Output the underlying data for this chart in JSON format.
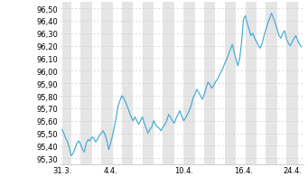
{
  "title": "",
  "ylabel": "",
  "xlabel": "",
  "ylim": [
    95.25,
    96.55
  ],
  "yticks": [
    95.3,
    95.4,
    95.5,
    95.6,
    95.7,
    95.8,
    95.9,
    96.0,
    96.1,
    96.2,
    96.3,
    96.4,
    96.5
  ],
  "xtick_labels": [
    "31.3.",
    "4.4.",
    "10.4.",
    "16.4.",
    "24.4."
  ],
  "line_color": "#42aad4",
  "bg_color": "#ffffff",
  "plot_bg": "#ffffff",
  "grid_color": "#cccccc",
  "stripe_color": "#e5e5e5",
  "prices": [
    95.53,
    95.5,
    95.46,
    95.43,
    95.38,
    95.32,
    95.34,
    95.38,
    95.42,
    95.44,
    95.41,
    95.37,
    95.35,
    95.42,
    95.45,
    95.44,
    95.47,
    95.46,
    95.43,
    95.45,
    95.48,
    95.5,
    95.52,
    95.49,
    95.44,
    95.37,
    95.42,
    95.48,
    95.55,
    95.63,
    95.72,
    95.76,
    95.8,
    95.78,
    95.75,
    95.71,
    95.67,
    95.63,
    95.6,
    95.63,
    95.6,
    95.57,
    95.6,
    95.63,
    95.58,
    95.54,
    95.5,
    95.53,
    95.55,
    95.6,
    95.57,
    95.55,
    95.54,
    95.52,
    95.55,
    95.57,
    95.6,
    95.65,
    95.63,
    95.6,
    95.58,
    95.62,
    95.65,
    95.68,
    95.64,
    95.6,
    95.62,
    95.65,
    95.68,
    95.72,
    95.78,
    95.81,
    95.85,
    95.83,
    95.8,
    95.77,
    95.81,
    95.86,
    95.91,
    95.89,
    95.86,
    95.88,
    95.91,
    95.93,
    95.96,
    95.99,
    96.02,
    96.06,
    96.09,
    96.13,
    96.17,
    96.21,
    96.15,
    96.09,
    96.04,
    96.1,
    96.23,
    96.41,
    96.44,
    96.38,
    96.33,
    96.28,
    96.3,
    96.26,
    96.23,
    96.2,
    96.18,
    96.22,
    96.28,
    96.33,
    96.38,
    96.42,
    96.46,
    96.42,
    96.38,
    96.33,
    96.28,
    96.26,
    96.3,
    96.32,
    96.25,
    96.22,
    96.2,
    96.23,
    96.26,
    96.28,
    96.24,
    96.21,
    96.19
  ]
}
